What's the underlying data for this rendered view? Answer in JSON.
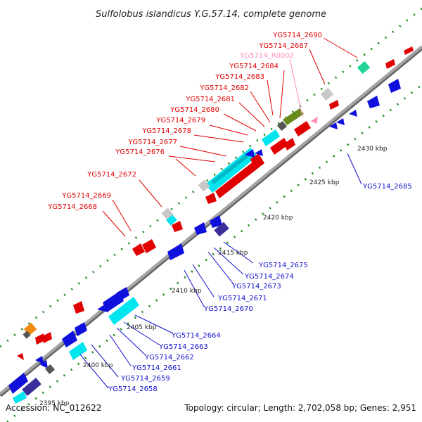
{
  "title": "Sulfolobus islandicus Y.G.57.14, complete genome",
  "footer": {
    "accession": "Accession: NC_012622",
    "topology": "Topology: circular; Length: 2,702,058 bp; Genes: 2,951"
  },
  "colors": {
    "backbone": "#9a9a9a",
    "dots": "#1f8a1f",
    "forward_label": "#e00000",
    "reverse_label": "#1010cc",
    "rna_label": "#ff88bb"
  },
  "scale_ticks": [
    "2395 kbp",
    "2400 kbp",
    "2405 kbp",
    "2410 kbp",
    "2415 kbp",
    "2420 kbp",
    "2425 kbp",
    "2430 kbp"
  ],
  "forward_labels": [
    "YG5714_2690",
    "YG5714_2687",
    "YG5714_R0002",
    "YG5714_2684",
    "YG5714_2683",
    "YG5714_2682",
    "YG5714_2681",
    "YG5714_2680",
    "YG5714_2679",
    "YG5714_2678",
    "YG5714_2677",
    "YG5714_2676",
    "YG5714_2672",
    "YG5714_2669",
    "YG5714_2668"
  ],
  "reverse_labels": [
    "YG5714_2685",
    "YG5714_2675",
    "YG5714_2674",
    "YG5714_2673",
    "YG5714_2671",
    "YG5714_2670",
    "YG5714_2664",
    "YG5714_2663",
    "YG5714_2662",
    "YG5714_2661",
    "YG5714_2659",
    "YG5714_2658"
  ]
}
